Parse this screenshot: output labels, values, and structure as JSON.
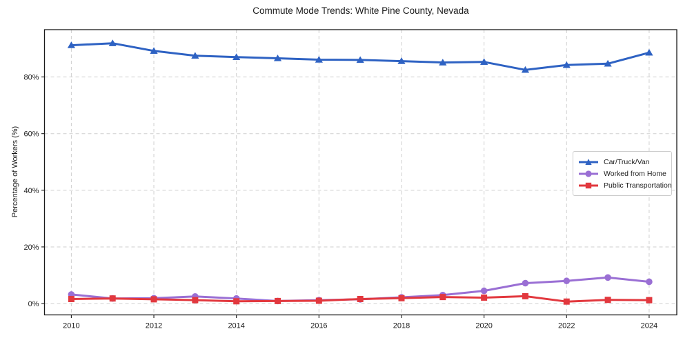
{
  "title": "Commute Mode Trends: White Pine County, Nevada",
  "chart_data": {
    "type": "line",
    "title": "Commute Mode Trends: White Pine County, Nevada",
    "xlabel": "",
    "ylabel": "Percentage of Workers (%)",
    "x": [
      2010,
      2011,
      2012,
      2013,
      2014,
      2015,
      2016,
      2017,
      2018,
      2019,
      2020,
      2021,
      2022,
      2023,
      2024
    ],
    "series": [
      {
        "name": "Car/Truck/Van",
        "marker": "triangle",
        "color": "#2e62c3",
        "values": [
          91.2,
          91.9,
          89.2,
          87.5,
          87.0,
          86.6,
          86.1,
          86.0,
          85.6,
          85.1,
          85.3,
          82.5,
          84.2,
          84.7,
          88.6
        ]
      },
      {
        "name": "Worked from Home",
        "marker": "circle",
        "color": "#9a6fd4",
        "values": [
          3.2,
          1.8,
          1.9,
          2.5,
          1.8,
          0.9,
          1.2,
          1.5,
          2.2,
          3.0,
          4.5,
          7.2,
          8.0,
          9.2,
          7.7
        ]
      },
      {
        "name": "Public Transportation",
        "marker": "square",
        "color": "#e2383e",
        "values": [
          1.6,
          1.8,
          1.5,
          1.2,
          0.8,
          0.9,
          1.0,
          1.6,
          1.9,
          2.3,
          2.1,
          2.6,
          0.7,
          1.3,
          1.2
        ]
      }
    ],
    "xticks": [
      2010,
      2012,
      2014,
      2016,
      2018,
      2020,
      2022,
      2024
    ],
    "xtick_labels": [
      "2010",
      "2012",
      "2014",
      "2016",
      "2018",
      "2020",
      "2022",
      "2024"
    ],
    "yticks": [
      0,
      20,
      40,
      60,
      80
    ],
    "ytick_labels": [
      "0%",
      "20%",
      "40%",
      "60%",
      "80%"
    ],
    "xlim": [
      2009.35,
      2024.67
    ],
    "ylim": [
      -4.0,
      96.7
    ],
    "grid": true,
    "grid_style": "dashed",
    "legend_position": "center-right",
    "colors": {
      "grid": "#cfcfcf",
      "spine": "#1a1a1a",
      "text": "#1a1a1a",
      "background": "#ffffff"
    }
  }
}
